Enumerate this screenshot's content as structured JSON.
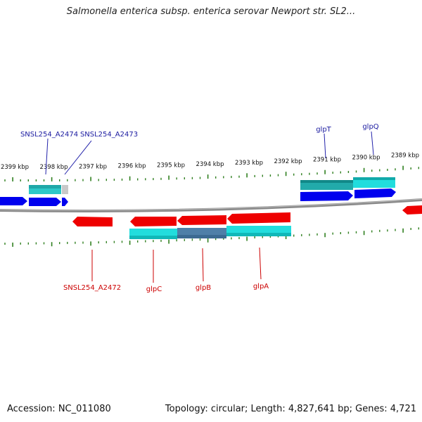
{
  "title": "Salmonella enterica subsp. enterica serovar Newport str. SL2...",
  "footer": {
    "accession": "Accession: NC_011080",
    "summary": "Topology: circular; Length: 4,827,641 bp; Genes: 4,721"
  },
  "colors": {
    "backbone": "#8a8a8a",
    "tick": "#2f7f1f",
    "forward_gene": "#0000ee",
    "reverse_gene": "#ee0000",
    "cds_cyan": "#22dddd",
    "cds_teal": "#22aaaa",
    "cds_steel": "#4f7fa8",
    "cds_gray": "#c8c8c8",
    "forward_label": "#1a1aa0",
    "reverse_label": "#cc0000"
  },
  "kbp_ticks": [
    {
      "label": "2399 kbp"
    },
    {
      "label": "2398 kbp"
    },
    {
      "label": "2397 kbp"
    },
    {
      "label": "2396 kbp"
    },
    {
      "label": "2395 kbp"
    },
    {
      "label": "2394 kbp"
    },
    {
      "label": "2393 kbp"
    },
    {
      "label": "2392 kbp"
    },
    {
      "label": "2391 kbp"
    },
    {
      "label": "2390 kbp"
    },
    {
      "label": "2389 kbp"
    }
  ],
  "forward_labels": [
    {
      "text": "SNSL254_A2474"
    },
    {
      "text": "SNSL254_A2473"
    },
    {
      "text": "glpT"
    },
    {
      "text": "glpQ"
    }
  ],
  "reverse_labels": [
    {
      "text": "SNSL254_A2472"
    },
    {
      "text": "glpC"
    },
    {
      "text": "glpB"
    },
    {
      "text": "glpA"
    }
  ]
}
